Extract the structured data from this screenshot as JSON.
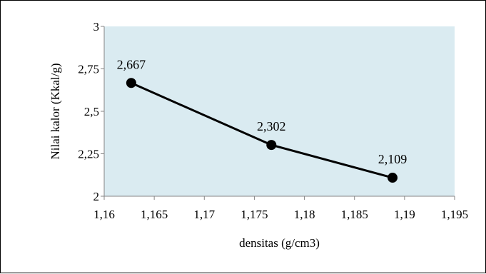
{
  "chart_data": {
    "type": "scatter",
    "xlabel": "densitas (g/cm3)",
    "ylabel": "Nilai kalor (Kkal/g)",
    "xlim": [
      1.16,
      1.195
    ],
    "ylim": [
      2,
      3
    ],
    "x_ticks": [
      "1,16",
      "1,165",
      "1,17",
      "1,175",
      "1,18",
      "1,185",
      "1,19",
      "1,195"
    ],
    "y_ticks": [
      "2",
      "2,25",
      "2,5",
      "2,75",
      "3"
    ],
    "grid": false,
    "legend": "none",
    "plot_background": "#daebf1",
    "series": [
      {
        "color": "#000000",
        "x": [
          1.1627,
          1.1767,
          1.1888
        ],
        "y": [
          2.667,
          2.302,
          2.109
        ],
        "labels": [
          "2,667",
          "2,302",
          "2,109"
        ]
      }
    ]
  }
}
